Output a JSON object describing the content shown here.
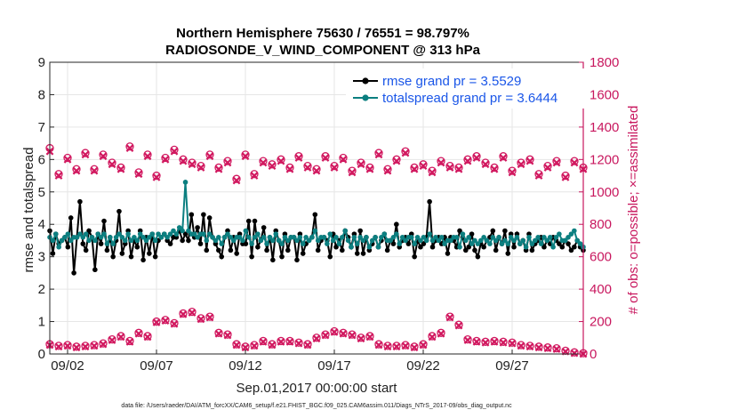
{
  "chart_data": {
    "type": "line",
    "title": "Northern Hemisphere 75630 / 76551 = 98.797%",
    "subtitle": "RADIOSONDE_V_WIND_COMPONENT @ 313 hPa",
    "xlabel": "Sep.01,2017 00:00:00 start",
    "ylabel_left": "rmse and totalspread",
    "ylabel_right": "# of obs: o=possible; ×=assimilated",
    "footnote": "data file: /Users/raeder/DAI/ATM_forcXX/CAM6_setup/f.e21.FHIST_BGC.f09_025.CAM6assim.011/Diags_NTrS_2017-09/obs_diag_output.nc",
    "x_ticks": [
      {
        "day": 2,
        "label": "09/02"
      },
      {
        "day": 7,
        "label": "09/07"
      },
      {
        "day": 12,
        "label": "09/12"
      },
      {
        "day": 17,
        "label": "09/17"
      },
      {
        "day": 22,
        "label": "09/22"
      },
      {
        "day": 27,
        "label": "09/27"
      }
    ],
    "xlim": [
      1.0,
      31.0
    ],
    "ylim_left": [
      0,
      9
    ],
    "ylim_right": [
      0,
      1800
    ],
    "left_ticks": [
      "0",
      "1",
      "2",
      "3",
      "4",
      "5",
      "6",
      "7",
      "8",
      "9"
    ],
    "right_ticks": [
      "0",
      "200",
      "400",
      "600",
      "800",
      "1000",
      "1200",
      "1400",
      "1600",
      "1800"
    ],
    "grid": true,
    "legend_position": "top-right",
    "colors": {
      "rmse": "#000000",
      "spread": "#0c7f80",
      "obs": "#d1185f",
      "right_axis": "#c8175e",
      "legend_text": "#1a56e8"
    },
    "series": [
      {
        "name": "rmse grand pr = 3.5529",
        "axis": "left",
        "marker": "filled-circle",
        "values": [
          3.8,
          3.1,
          3.7,
          3.4,
          3.5,
          3.6,
          3.3,
          4.2,
          2.5,
          3.6,
          4.7,
          3.4,
          3.2,
          3.8,
          3.6,
          2.6,
          3.7,
          3.4,
          4.1,
          3.2,
          3.6,
          3.0,
          3.5,
          4.4,
          3.1,
          3.4,
          3.8,
          3.0,
          3.5,
          3.3,
          3.8,
          2.9,
          3.6,
          3.1,
          3.7,
          3.0,
          3.5,
          3.6,
          3.7,
          3.5,
          3.4,
          3.6,
          3.6,
          3.8,
          3.5,
          3.7,
          3.5,
          4.3,
          3.6,
          3.9,
          3.4,
          4.3,
          3.2,
          4.2,
          3.6,
          3.4,
          3.2,
          3.0,
          3.6,
          3.8,
          3.2,
          3.6,
          3.1,
          3.7,
          3.4,
          3.4,
          4.1,
          3.0,
          4.1,
          3.3,
          3.5,
          3.9,
          3.2,
          3.6,
          2.9,
          3.8,
          3.5,
          3.0,
          3.7,
          3.2,
          3.6,
          3.6,
          2.9,
          3.7,
          3.1,
          3.4,
          3.5,
          3.6,
          4.3,
          3.2,
          3.5,
          3.6,
          3.5,
          3.0,
          3.7,
          3.3,
          3.5,
          3.2,
          3.8,
          3.6,
          3.3,
          3.7,
          3.1,
          3.8,
          3.1,
          3.6,
          3.2,
          3.4,
          3.6,
          3.3,
          3.5,
          3.7,
          3.2,
          3.5,
          3.4,
          4.0,
          3.3,
          3.5,
          3.6,
          3.4,
          3.7,
          3.0,
          3.5,
          3.3,
          3.4,
          3.6,
          4.7,
          3.3,
          3.5,
          3.6,
          3.4,
          3.6,
          3.1,
          3.6,
          3.5,
          3.3,
          3.8,
          3.6,
          3.2,
          3.3,
          3.7,
          3.2,
          3.0,
          3.4,
          3.3,
          3.5,
          3.6,
          3.8,
          3.2,
          3.6,
          3.4,
          3.8,
          3.1,
          3.7,
          3.3,
          3.7,
          3.4,
          3.5,
          3.2,
          3.7,
          3.2,
          3.4,
          3.5,
          3.6,
          3.3,
          3.5,
          3.4,
          3.6,
          3.5,
          3.4,
          3.3,
          3.5,
          3.4,
          3.2,
          3.3,
          3.5,
          3.3,
          3.2
        ]
      },
      {
        "name": "totalspread grand pr = 3.6444",
        "axis": "left",
        "marker": "filled-circle",
        "values": [
          3.6,
          3.5,
          3.7,
          3.3,
          3.5,
          3.6,
          3.7,
          3.5,
          3.6,
          3.6,
          3.7,
          3.6,
          3.7,
          3.5,
          3.6,
          3.5,
          3.7,
          3.6,
          3.7,
          3.4,
          3.6,
          3.4,
          3.6,
          3.7,
          3.6,
          3.5,
          3.7,
          3.5,
          3.6,
          3.5,
          3.7,
          3.6,
          3.5,
          3.6,
          3.7,
          3.5,
          3.7,
          3.6,
          3.7,
          3.6,
          3.7,
          3.8,
          3.7,
          3.9,
          3.8,
          5.3,
          3.8,
          3.7,
          3.7,
          3.6,
          3.7,
          3.7,
          3.5,
          3.7,
          3.6,
          3.5,
          3.6,
          3.4,
          3.6,
          3.7,
          3.6,
          3.5,
          3.6,
          3.6,
          3.5,
          3.8,
          3.6,
          3.4,
          3.6,
          3.7,
          3.5,
          3.6,
          3.4,
          3.6,
          3.5,
          3.7,
          3.5,
          3.4,
          3.6,
          3.5,
          3.6,
          3.6,
          3.5,
          3.6,
          3.4,
          3.6,
          3.5,
          3.6,
          3.8,
          3.5,
          3.6,
          3.6,
          3.4,
          3.7,
          3.5,
          3.6,
          3.4,
          3.6,
          3.8,
          3.5,
          3.3,
          3.6,
          3.4,
          3.6,
          3.5,
          3.6,
          3.3,
          3.5,
          3.6,
          3.3,
          3.6,
          3.7,
          3.5,
          3.5,
          3.6,
          3.7,
          3.4,
          3.6,
          3.5,
          3.6,
          3.6,
          3.4,
          3.6,
          3.5,
          3.6,
          3.5,
          3.7,
          3.5,
          3.6,
          3.5,
          3.6,
          3.4,
          3.5,
          3.5,
          3.6,
          3.6,
          3.3,
          3.7,
          3.5,
          3.6,
          3.4,
          3.5,
          3.4,
          3.5,
          3.6,
          3.5,
          3.4,
          3.6,
          3.5,
          3.6,
          3.4,
          3.5,
          3.4,
          3.6,
          3.5,
          3.6,
          3.4,
          3.5,
          3.3,
          3.6,
          3.4,
          3.5,
          3.6,
          3.4,
          3.6,
          3.5,
          3.6,
          3.3,
          3.6,
          3.7,
          3.5,
          3.5,
          3.6,
          3.7,
          3.8,
          3.5,
          3.4,
          3.3
        ]
      },
      {
        "name": "obs possible (upper)",
        "axis": "right",
        "marker": "open-circle",
        "x": [
          1.0,
          1.5,
          2.0,
          2.5,
          3.0,
          3.5,
          4.0,
          4.5,
          5.0,
          5.5,
          6.0,
          6.5,
          7.0,
          7.5,
          8.0,
          8.5,
          9.0,
          9.5,
          10.0,
          10.5,
          11.0,
          11.5,
          12.0,
          12.5,
          13.0,
          13.5,
          14.0,
          14.5,
          15.0,
          15.5,
          16.0,
          16.5,
          17.0,
          17.5,
          18.0,
          18.5,
          19.0,
          19.5,
          20.0,
          20.5,
          21.0,
          21.5,
          22.0,
          22.5,
          23.0,
          23.5,
          24.0,
          24.5,
          25.0,
          25.5,
          26.0,
          26.5,
          27.0,
          27.5,
          28.0,
          28.5,
          29.0,
          29.5,
          30.0,
          30.5,
          31.0
        ],
        "values": [
          1270,
          1110,
          1210,
          1140,
          1240,
          1140,
          1230,
          1180,
          1150,
          1280,
          1120,
          1230,
          1100,
          1210,
          1260,
          1200,
          1180,
          1160,
          1230,
          1150,
          1190,
          1080,
          1230,
          1110,
          1190,
          1170,
          1200,
          1150,
          1220,
          1160,
          1140,
          1220,
          1160,
          1210,
          1130,
          1180,
          1150,
          1240,
          1140,
          1200,
          1250,
          1150,
          1170,
          1130,
          1190,
          1160,
          1150,
          1200,
          1220,
          1180,
          1150,
          1220,
          1130,
          1180,
          1200,
          1110,
          1160,
          1190,
          1100,
          1190,
          1150
        ]
      },
      {
        "name": "obs assimilated (upper)",
        "axis": "right",
        "marker": "x",
        "x": [
          1.0,
          1.5,
          2.0,
          2.5,
          3.0,
          3.5,
          4.0,
          4.5,
          5.0,
          5.5,
          6.0,
          6.5,
          7.0,
          7.5,
          8.0,
          8.5,
          9.0,
          9.5,
          10.0,
          10.5,
          11.0,
          11.5,
          12.0,
          12.5,
          13.0,
          13.5,
          14.0,
          14.5,
          15.0,
          15.5,
          16.0,
          16.5,
          17.0,
          17.5,
          18.0,
          18.5,
          19.0,
          19.5,
          20.0,
          20.5,
          21.0,
          21.5,
          22.0,
          22.5,
          23.0,
          23.5,
          24.0,
          24.5,
          25.0,
          25.5,
          26.0,
          26.5,
          27.0,
          27.5,
          28.0,
          28.5,
          29.0,
          29.5,
          30.0,
          30.5,
          31.0
        ],
        "values": [
          1250,
          1100,
          1200,
          1130,
          1230,
          1130,
          1220,
          1170,
          1140,
          1270,
          1110,
          1220,
          1090,
          1200,
          1250,
          1190,
          1170,
          1150,
          1220,
          1140,
          1180,
          1070,
          1220,
          1100,
          1180,
          1160,
          1190,
          1140,
          1210,
          1150,
          1130,
          1210,
          1150,
          1200,
          1120,
          1170,
          1140,
          1230,
          1130,
          1190,
          1240,
          1140,
          1160,
          1120,
          1180,
          1150,
          1140,
          1190,
          1210,
          1170,
          1140,
          1210,
          1120,
          1170,
          1190,
          1100,
          1150,
          1180,
          1090,
          1180,
          1140
        ]
      },
      {
        "name": "obs possible (lower)",
        "axis": "right",
        "marker": "open-circle",
        "x": [
          1.0,
          1.5,
          2.0,
          2.5,
          3.0,
          3.5,
          4.0,
          4.5,
          5.0,
          5.5,
          6.0,
          6.5,
          7.0,
          7.5,
          8.0,
          8.5,
          9.0,
          9.5,
          10.0,
          10.5,
          11.0,
          11.5,
          12.0,
          12.5,
          13.0,
          13.5,
          14.0,
          14.5,
          15.0,
          15.5,
          16.0,
          16.5,
          17.0,
          17.5,
          18.0,
          18.5,
          19.0,
          19.5,
          20.0,
          20.5,
          21.0,
          21.5,
          22.0,
          22.5,
          23.0,
          23.5,
          24.0,
          24.5,
          25.0,
          25.5,
          26.0,
          26.5,
          27.0,
          27.5,
          28.0,
          28.5,
          29.0,
          29.5,
          30.0,
          30.5,
          31.0
        ],
        "values": [
          60,
          50,
          55,
          45,
          50,
          55,
          65,
          90,
          110,
          80,
          130,
          110,
          200,
          210,
          190,
          250,
          260,
          220,
          230,
          130,
          120,
          60,
          45,
          55,
          80,
          60,
          80,
          80,
          70,
          60,
          100,
          120,
          140,
          130,
          120,
          100,
          110,
          60,
          50,
          50,
          55,
          45,
          60,
          110,
          130,
          230,
          180,
          90,
          80,
          75,
          80,
          75,
          70,
          55,
          50,
          45,
          40,
          35,
          20,
          10,
          5
        ]
      },
      {
        "name": "obs assimilated (lower)",
        "axis": "right",
        "marker": "x",
        "x": [
          1.0,
          1.5,
          2.0,
          2.5,
          3.0,
          3.5,
          4.0,
          4.5,
          5.0,
          5.5,
          6.0,
          6.5,
          7.0,
          7.5,
          8.0,
          8.5,
          9.0,
          9.5,
          10.0,
          10.5,
          11.0,
          11.5,
          12.0,
          12.5,
          13.0,
          13.5,
          14.0,
          14.5,
          15.0,
          15.5,
          16.0,
          16.5,
          17.0,
          17.5,
          18.0,
          18.5,
          19.0,
          19.5,
          20.0,
          20.5,
          21.0,
          21.5,
          22.0,
          22.5,
          23.0,
          23.5,
          24.0,
          24.5,
          25.0,
          25.5,
          26.0,
          26.5,
          27.0,
          27.5,
          28.0,
          28.5,
          29.0,
          29.5,
          30.0,
          30.5,
          31.0
        ],
        "values": [
          55,
          45,
          50,
          40,
          45,
          50,
          60,
          85,
          105,
          75,
          125,
          105,
          195,
          205,
          185,
          245,
          255,
          215,
          225,
          125,
          115,
          55,
          40,
          50,
          75,
          55,
          75,
          75,
          65,
          55,
          95,
          115,
          135,
          125,
          115,
          95,
          105,
          55,
          45,
          45,
          50,
          40,
          55,
          105,
          125,
          225,
          175,
          85,
          75,
          70,
          75,
          70,
          65,
          50,
          45,
          40,
          35,
          30,
          15,
          5,
          0
        ]
      }
    ]
  }
}
